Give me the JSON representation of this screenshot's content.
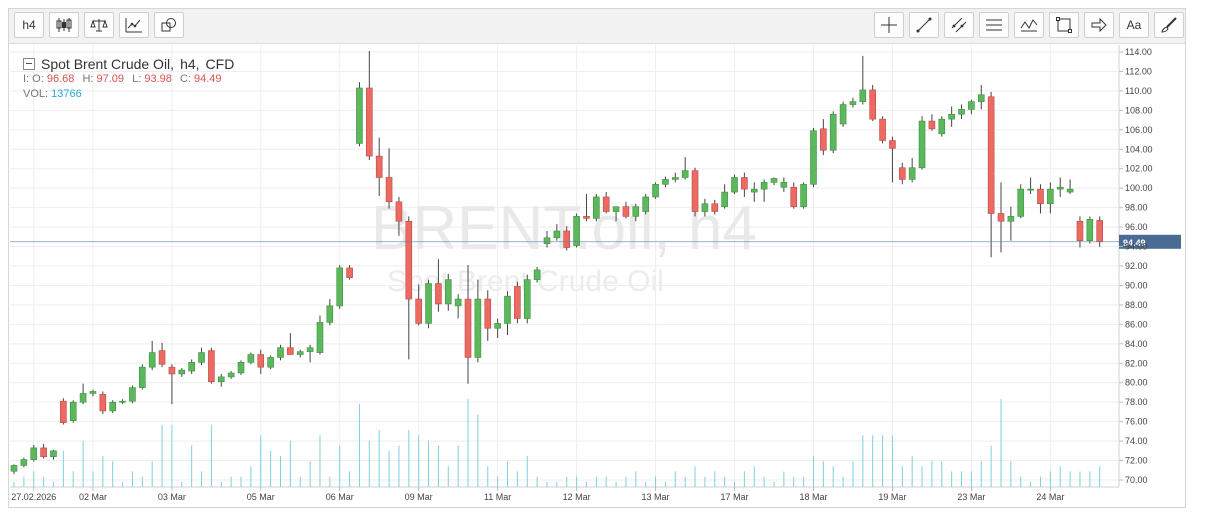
{
  "toolbar": {
    "timeframe_label": "h4",
    "right_text_label": "Aa"
  },
  "legend": {
    "title": "Spot Brent Crude Oil,",
    "timeframe": "h4,",
    "type": "CFD",
    "o_label": "I: O:",
    "o": "96.68",
    "h_label": "H:",
    "h": "97.09",
    "l_label": "L:",
    "l": "93.98",
    "c_label": "C:",
    "c": "94.49",
    "vol_label": "VOL:",
    "vol": "13766"
  },
  "watermark": {
    "symbol": "BRENT.oil, h4",
    "name": "Spot Brent Crude Oil"
  },
  "colors": {
    "up": "#5cb85c",
    "down": "#ec6a62",
    "volume": "#7fcfe0",
    "grid": "#eeeeee",
    "price_line": "#5b7fa8",
    "price_badge": "#4a6b94"
  },
  "chart_data": {
    "type": "candlestick",
    "y_range": [
      69,
      115
    ],
    "y_ticks": [
      "70.00",
      "72.00",
      "74.00",
      "76.00",
      "78.00",
      "80.00",
      "82.00",
      "84.00",
      "86.00",
      "88.00",
      "90.00",
      "92.00",
      "94.00",
      "96.00",
      "98.00",
      "100.00",
      "102.00",
      "104.00",
      "106.00",
      "108.00",
      "110.00",
      "112.00",
      "114.00"
    ],
    "current_price": "94.49",
    "x_labels": [
      {
        "label": "27.02.2026",
        "index": 2
      },
      {
        "label": "02 Mar",
        "index": 8
      },
      {
        "label": "03 Mar",
        "index": 16
      },
      {
        "label": "05 Mar",
        "index": 25
      },
      {
        "label": "06 Mar",
        "index": 33
      },
      {
        "label": "09 Mar",
        "index": 41
      },
      {
        "label": "11 Mar",
        "index": 49
      },
      {
        "label": "12 Mar",
        "index": 57
      },
      {
        "label": "13 Mar",
        "index": 65
      },
      {
        "label": "17 Mar",
        "index": 73
      },
      {
        "label": "18 Mar",
        "index": 81
      },
      {
        "label": "19 Mar",
        "index": 89
      },
      {
        "label": "23 Mar",
        "index": 97
      },
      {
        "label": "24 Mar",
        "index": 105
      }
    ],
    "candles": [
      {
        "o": 70.9,
        "h": 71.6,
        "l": 70.6,
        "c": 71.5,
        "v": 1
      },
      {
        "o": 71.5,
        "h": 72.3,
        "l": 71.3,
        "c": 72.1,
        "v": 2
      },
      {
        "o": 72.1,
        "h": 73.6,
        "l": 71.9,
        "c": 73.3,
        "v": 3
      },
      {
        "o": 73.3,
        "h": 73.7,
        "l": 72.2,
        "c": 72.4,
        "v": 2
      },
      {
        "o": 72.4,
        "h": 73.1,
        "l": 72.1,
        "c": 73.0,
        "v": 1
      },
      {
        "o": 78.1,
        "h": 78.4,
        "l": 75.7,
        "c": 75.9,
        "v": 7
      },
      {
        "o": 76.1,
        "h": 78.2,
        "l": 75.9,
        "c": 78.0,
        "v": 3
      },
      {
        "o": 78.0,
        "h": 79.9,
        "l": 77.8,
        "c": 78.9,
        "v": 9
      },
      {
        "o": 78.9,
        "h": 79.3,
        "l": 78.6,
        "c": 79.1,
        "v": 3
      },
      {
        "o": 78.8,
        "h": 79.1,
        "l": 76.8,
        "c": 77.1,
        "v": 6
      },
      {
        "o": 77.1,
        "h": 78.2,
        "l": 76.9,
        "c": 78.0,
        "v": 5
      },
      {
        "o": 78.0,
        "h": 78.3,
        "l": 77.8,
        "c": 78.1,
        "v": 1
      },
      {
        "o": 78.1,
        "h": 79.7,
        "l": 77.9,
        "c": 79.5,
        "v": 3
      },
      {
        "o": 79.5,
        "h": 81.9,
        "l": 79.3,
        "c": 81.6,
        "v": 2
      },
      {
        "o": 81.6,
        "h": 84.3,
        "l": 81.3,
        "c": 83.1,
        "v": 5
      },
      {
        "o": 83.3,
        "h": 84.1,
        "l": 81.6,
        "c": 81.9,
        "v": 12
      },
      {
        "o": 81.6,
        "h": 81.9,
        "l": 77.8,
        "c": 80.9,
        "v": 12
      },
      {
        "o": 80.9,
        "h": 81.5,
        "l": 80.6,
        "c": 81.3,
        "v": 1
      },
      {
        "o": 81.2,
        "h": 82.4,
        "l": 80.9,
        "c": 82.1,
        "v": 8
      },
      {
        "o": 82.1,
        "h": 83.6,
        "l": 81.8,
        "c": 83.1,
        "v": 3
      },
      {
        "o": 83.3,
        "h": 83.6,
        "l": 79.9,
        "c": 80.1,
        "v": 12
      },
      {
        "o": 80.1,
        "h": 80.9,
        "l": 79.6,
        "c": 80.6,
        "v": 1
      },
      {
        "o": 80.6,
        "h": 81.2,
        "l": 80.4,
        "c": 81.0,
        "v": 2
      },
      {
        "o": 81.0,
        "h": 82.3,
        "l": 80.8,
        "c": 82.1,
        "v": 2
      },
      {
        "o": 82.1,
        "h": 83.1,
        "l": 81.9,
        "c": 82.9,
        "v": 4
      },
      {
        "o": 82.9,
        "h": 83.4,
        "l": 80.9,
        "c": 81.6,
        "v": 10
      },
      {
        "o": 81.6,
        "h": 82.8,
        "l": 81.4,
        "c": 82.6,
        "v": 7
      },
      {
        "o": 82.6,
        "h": 83.9,
        "l": 82.3,
        "c": 83.6,
        "v": 6
      },
      {
        "o": 83.6,
        "h": 85.1,
        "l": 82.9,
        "c": 82.9,
        "v": 9
      },
      {
        "o": 82.9,
        "h": 83.4,
        "l": 82.6,
        "c": 83.2,
        "v": 2
      },
      {
        "o": 83.2,
        "h": 83.9,
        "l": 82.1,
        "c": 83.6,
        "v": 5
      },
      {
        "o": 83.1,
        "h": 86.9,
        "l": 82.9,
        "c": 86.2,
        "v": 10
      },
      {
        "o": 86.2,
        "h": 88.6,
        "l": 85.9,
        "c": 87.9,
        "v": 2
      },
      {
        "o": 87.9,
        "h": 92.1,
        "l": 87.6,
        "c": 91.8,
        "v": 8
      },
      {
        "o": 91.8,
        "h": 92.1,
        "l": 90.6,
        "c": 90.8,
        "v": 3
      },
      {
        "o": 104.6,
        "h": 110.9,
        "l": 104.3,
        "c": 110.3,
        "v": 16
      },
      {
        "o": 110.3,
        "h": 114.1,
        "l": 102.9,
        "c": 103.3,
        "v": 9
      },
      {
        "o": 103.3,
        "h": 105.2,
        "l": 99.2,
        "c": 101.1,
        "v": 11
      },
      {
        "o": 101.1,
        "h": 104.1,
        "l": 97.9,
        "c": 98.6,
        "v": 7
      },
      {
        "o": 98.6,
        "h": 99.1,
        "l": 95.1,
        "c": 96.6,
        "v": 8
      },
      {
        "o": 96.6,
        "h": 97.1,
        "l": 82.4,
        "c": 88.6,
        "v": 11
      },
      {
        "o": 88.6,
        "h": 90.1,
        "l": 85.9,
        "c": 86.1,
        "v": 10
      },
      {
        "o": 86.1,
        "h": 90.6,
        "l": 85.6,
        "c": 90.2,
        "v": 9
      },
      {
        "o": 90.2,
        "h": 92.7,
        "l": 87.3,
        "c": 88.1,
        "v": 8
      },
      {
        "o": 88.1,
        "h": 91.2,
        "l": 87.4,
        "c": 90.6,
        "v": 4
      },
      {
        "o": 87.9,
        "h": 89.1,
        "l": 86.6,
        "c": 88.6,
        "v": 8
      },
      {
        "o": 88.6,
        "h": 92.1,
        "l": 79.9,
        "c": 82.6,
        "v": 17
      },
      {
        "o": 82.6,
        "h": 90.6,
        "l": 82.1,
        "c": 88.6,
        "v": 14
      },
      {
        "o": 88.6,
        "h": 89.5,
        "l": 84.3,
        "c": 85.6,
        "v": 4
      },
      {
        "o": 85.6,
        "h": 86.6,
        "l": 84.6,
        "c": 86.1,
        "v": 2
      },
      {
        "o": 86.1,
        "h": 89.4,
        "l": 84.9,
        "c": 88.9,
        "v": 5
      },
      {
        "o": 89.9,
        "h": 90.4,
        "l": 86.1,
        "c": 86.6,
        "v": 3
      },
      {
        "o": 86.6,
        "h": 91.1,
        "l": 86.1,
        "c": 90.6,
        "v": 6
      },
      {
        "o": 90.6,
        "h": 91.9,
        "l": 90.3,
        "c": 91.6,
        "v": 2
      },
      {
        "o": 94.3,
        "h": 95.6,
        "l": 93.9,
        "c": 94.9,
        "v": 1
      },
      {
        "o": 94.9,
        "h": 96.3,
        "l": 94.6,
        "c": 95.6,
        "v": 1
      },
      {
        "o": 95.6,
        "h": 96.1,
        "l": 93.6,
        "c": 93.9,
        "v": 2
      },
      {
        "o": 94.1,
        "h": 97.4,
        "l": 93.9,
        "c": 97.1,
        "v": 2
      },
      {
        "o": 97.1,
        "h": 99.4,
        "l": 96.6,
        "c": 96.9,
        "v": 1
      },
      {
        "o": 96.9,
        "h": 99.4,
        "l": 96.6,
        "c": 99.1,
        "v": 2
      },
      {
        "o": 99.1,
        "h": 99.6,
        "l": 97.4,
        "c": 97.6,
        "v": 2
      },
      {
        "o": 97.6,
        "h": 98.1,
        "l": 96.6,
        "c": 98.1,
        "v": 1
      },
      {
        "o": 98.1,
        "h": 98.6,
        "l": 96.9,
        "c": 97.1,
        "v": 2
      },
      {
        "o": 97.1,
        "h": 98.4,
        "l": 96.6,
        "c": 98.1,
        "v": 3
      },
      {
        "o": 97.6,
        "h": 99.4,
        "l": 97.3,
        "c": 99.1,
        "v": 1
      },
      {
        "o": 99.1,
        "h": 100.6,
        "l": 98.9,
        "c": 100.4,
        "v": 2
      },
      {
        "o": 100.4,
        "h": 101.2,
        "l": 100.1,
        "c": 100.9,
        "v": 1
      },
      {
        "o": 100.9,
        "h": 101.6,
        "l": 100.6,
        "c": 101.1,
        "v": 3
      },
      {
        "o": 101.1,
        "h": 103.2,
        "l": 100.9,
        "c": 101.8,
        "v": 2
      },
      {
        "o": 101.8,
        "h": 102.1,
        "l": 97.1,
        "c": 97.6,
        "v": 4
      },
      {
        "o": 97.6,
        "h": 98.9,
        "l": 97.1,
        "c": 98.4,
        "v": 2
      },
      {
        "o": 98.4,
        "h": 98.8,
        "l": 97.3,
        "c": 97.6,
        "v": 3
      },
      {
        "o": 98.1,
        "h": 100.4,
        "l": 97.9,
        "c": 99.6,
        "v": 2
      },
      {
        "o": 99.6,
        "h": 101.4,
        "l": 99.4,
        "c": 101.1,
        "v": 1
      },
      {
        "o": 101.1,
        "h": 101.6,
        "l": 99.1,
        "c": 99.9,
        "v": 3
      },
      {
        "o": 99.6,
        "h": 100.6,
        "l": 98.6,
        "c": 99.9,
        "v": 4
      },
      {
        "o": 99.9,
        "h": 100.9,
        "l": 98.6,
        "c": 100.6,
        "v": 2
      },
      {
        "o": 100.6,
        "h": 101.1,
        "l": 100.3,
        "c": 101.0,
        "v": 1
      },
      {
        "o": 100.1,
        "h": 101.1,
        "l": 99.6,
        "c": 100.6,
        "v": 3
      },
      {
        "o": 100.1,
        "h": 100.6,
        "l": 97.9,
        "c": 98.1,
        "v": 2
      },
      {
        "o": 98.1,
        "h": 100.6,
        "l": 97.9,
        "c": 100.4,
        "v": 2
      },
      {
        "o": 100.4,
        "h": 106.2,
        "l": 100.1,
        "c": 105.9,
        "v": 6
      },
      {
        "o": 106.1,
        "h": 107.1,
        "l": 103.4,
        "c": 103.9,
        "v": 5
      },
      {
        "o": 103.9,
        "h": 107.9,
        "l": 103.6,
        "c": 107.6,
        "v": 4
      },
      {
        "o": 106.6,
        "h": 108.9,
        "l": 106.3,
        "c": 108.6,
        "v": 2
      },
      {
        "o": 108.6,
        "h": 109.3,
        "l": 108.3,
        "c": 108.9,
        "v": 5
      },
      {
        "o": 108.9,
        "h": 113.6,
        "l": 108.6,
        "c": 110.1,
        "v": 10
      },
      {
        "o": 110.1,
        "h": 110.6,
        "l": 106.9,
        "c": 107.1,
        "v": 10
      },
      {
        "o": 107.1,
        "h": 107.4,
        "l": 104.6,
        "c": 104.9,
        "v": 10
      },
      {
        "o": 104.9,
        "h": 105.3,
        "l": 100.6,
        "c": 104.1,
        "v": 10
      },
      {
        "o": 102.1,
        "h": 102.6,
        "l": 100.4,
        "c": 100.9,
        "v": 4
      },
      {
        "o": 100.9,
        "h": 103.1,
        "l": 100.6,
        "c": 102.1,
        "v": 6
      },
      {
        "o": 102.1,
        "h": 107.4,
        "l": 101.9,
        "c": 106.9,
        "v": 4
      },
      {
        "o": 106.9,
        "h": 107.6,
        "l": 105.9,
        "c": 106.1,
        "v": 5
      },
      {
        "o": 105.6,
        "h": 107.4,
        "l": 105.3,
        "c": 107.1,
        "v": 5
      },
      {
        "o": 107.1,
        "h": 108.4,
        "l": 106.3,
        "c": 107.6,
        "v": 3
      },
      {
        "o": 107.6,
        "h": 108.6,
        "l": 107.1,
        "c": 108.1,
        "v": 3
      },
      {
        "o": 108.1,
        "h": 109.1,
        "l": 107.6,
        "c": 108.9,
        "v": 3
      },
      {
        "o": 108.9,
        "h": 110.6,
        "l": 108.1,
        "c": 109.6,
        "v": 5
      },
      {
        "o": 109.4,
        "h": 109.9,
        "l": 92.9,
        "c": 97.4,
        "v": 8
      },
      {
        "o": 97.4,
        "h": 100.6,
        "l": 93.4,
        "c": 96.6,
        "v": 17
      },
      {
        "o": 96.6,
        "h": 98.1,
        "l": 94.6,
        "c": 97.1,
        "v": 5
      },
      {
        "o": 97.1,
        "h": 100.4,
        "l": 96.9,
        "c": 99.9,
        "v": 2
      },
      {
        "o": 99.9,
        "h": 101.1,
        "l": 99.4,
        "c": 99.9,
        "v": 1
      },
      {
        "o": 99.9,
        "h": 100.4,
        "l": 97.4,
        "c": 98.4,
        "v": 2
      },
      {
        "o": 98.4,
        "h": 100.6,
        "l": 97.4,
        "c": 99.9,
        "v": 3
      },
      {
        "o": 99.9,
        "h": 101.1,
        "l": 99.1,
        "c": 100.1,
        "v": 4
      },
      {
        "o": 99.6,
        "h": 100.9,
        "l": 99.4,
        "c": 99.9,
        "v": 3
      },
      {
        "o": 96.6,
        "h": 97.1,
        "l": 93.9,
        "c": 94.6,
        "v": 3
      },
      {
        "o": 94.6,
        "h": 97.1,
        "l": 94.3,
        "c": 96.8,
        "v": 3
      },
      {
        "o": 96.68,
        "h": 97.09,
        "l": 93.98,
        "c": 94.49,
        "v": 4
      }
    ]
  }
}
